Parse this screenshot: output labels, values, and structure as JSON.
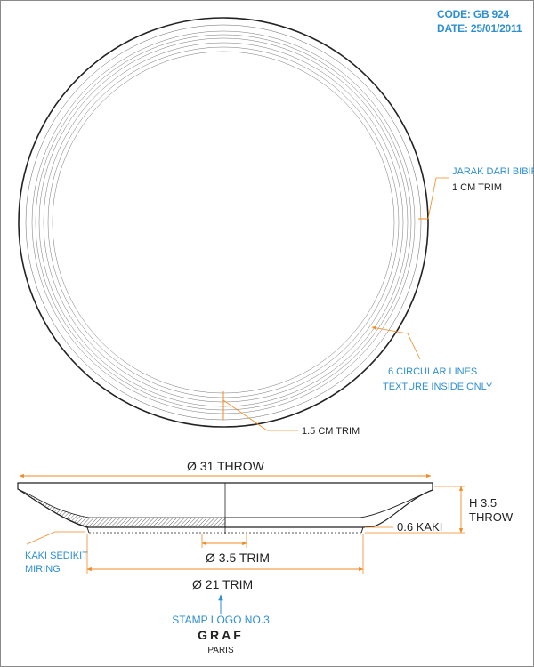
{
  "header": {
    "code_label": "CODE:",
    "code_value": "GB 924",
    "date_label": "DATE:",
    "date_value": "25/01/2011"
  },
  "top_view": {
    "rim_note_line1": "JARAK DARI BIBIR",
    "rim_note_line2": "1 CM TRIM",
    "circle_note_line1": "6 CIRCULAR LINES",
    "circle_note_line2": "TEXTURE INSIDE ONLY",
    "inner_trim_note": "1.5 CM TRIM"
  },
  "side_view": {
    "diameter_top": "31 THROW",
    "height_line1": "H 3.5",
    "height_line2": "THROW",
    "foot_height": "0.6 KAKI",
    "foot_note_line1": "KAKI SEDIKIT",
    "foot_note_line2": "MIRING",
    "center_diameter": "3.5 TRIM",
    "base_diameter": "21 TRIM",
    "diameter_symbol": "Ø"
  },
  "stamp": {
    "label": "STAMP LOGO NO.3",
    "brand": "GRAF",
    "city": "PARIS"
  },
  "colors": {
    "accent_blue": "#2e8fd0",
    "dimension_orange": "#f08a24",
    "line_dark": "#222222"
  }
}
